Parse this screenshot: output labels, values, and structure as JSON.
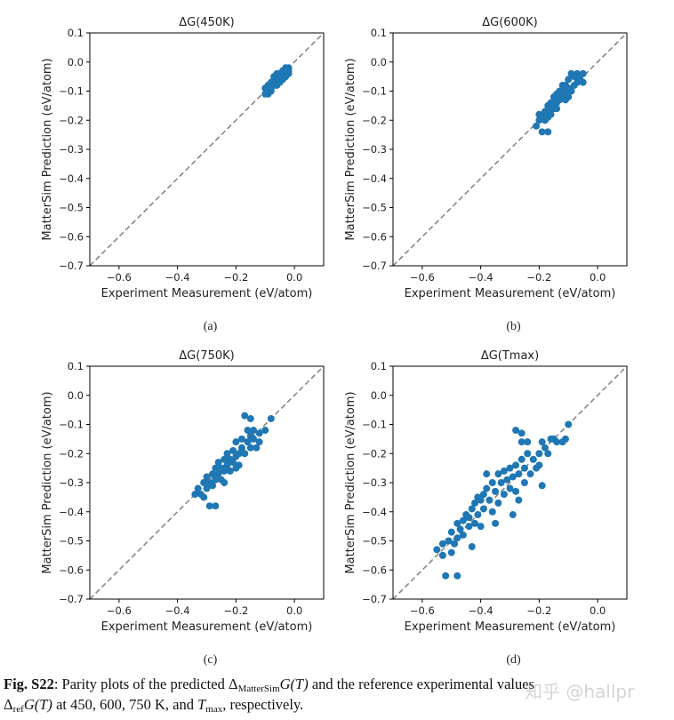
{
  "chart_data": [
    {
      "type": "scatter",
      "panel_label": "(a)",
      "title": "ΔG(450K)",
      "xlabel": "Experiment Measurement (eV/atom)",
      "ylabel": "MatterSim Prediction (eV/atom)",
      "xlim": [
        -0.7,
        0.1
      ],
      "ylim": [
        -0.7,
        0.1
      ],
      "xticks": [
        "−0.6",
        "−0.4",
        "−0.2",
        "0.0"
      ],
      "xtick_values": [
        -0.6,
        -0.4,
        -0.2,
        0.0
      ],
      "yticks": [
        "0.1",
        "0.0",
        "−0.1",
        "−0.2",
        "−0.3",
        "−0.4",
        "−0.5",
        "−0.6",
        "−0.7"
      ],
      "ytick_values": [
        0.1,
        0.0,
        -0.1,
        -0.2,
        -0.3,
        -0.4,
        -0.5,
        -0.6,
        -0.7
      ],
      "reference_line": "y = x (dashed gray)",
      "marker_color": "#1f77b4",
      "grid": false,
      "points": [
        [
          -0.1,
          -0.11
        ],
        [
          -0.09,
          -0.1
        ],
        [
          -0.09,
          -0.08
        ],
        [
          -0.08,
          -0.09
        ],
        [
          -0.08,
          -0.07
        ],
        [
          -0.07,
          -0.08
        ],
        [
          -0.07,
          -0.06
        ],
        [
          -0.06,
          -0.07
        ],
        [
          -0.06,
          -0.05
        ],
        [
          -0.05,
          -0.06
        ],
        [
          -0.05,
          -0.04
        ],
        [
          -0.04,
          -0.05
        ],
        [
          -0.04,
          -0.03
        ],
        [
          -0.03,
          -0.04
        ],
        [
          -0.03,
          -0.02
        ],
        [
          -0.02,
          -0.03
        ],
        [
          -0.02,
          -0.04
        ],
        [
          -0.06,
          -0.08
        ],
        [
          -0.08,
          -0.1
        ],
        [
          -0.1,
          -0.09
        ],
        [
          -0.07,
          -0.05
        ],
        [
          -0.05,
          -0.07
        ],
        [
          -0.04,
          -0.06
        ],
        [
          -0.03,
          -0.05
        ],
        [
          -0.09,
          -0.11
        ],
        [
          -0.06,
          -0.04
        ],
        [
          -0.03,
          -0.03
        ],
        [
          -0.02,
          -0.02
        ]
      ]
    },
    {
      "type": "scatter",
      "panel_label": "(b)",
      "title": "ΔG(600K)",
      "xlabel": "Experiment Measurement (eV/atom)",
      "ylabel": "MatterSim Prediction (eV/atom)",
      "xlim": [
        -0.7,
        0.1
      ],
      "ylim": [
        -0.7,
        0.1
      ],
      "xticks": [
        "−0.6",
        "−0.4",
        "−0.2",
        "0.0"
      ],
      "xtick_values": [
        -0.6,
        -0.4,
        -0.2,
        0.0
      ],
      "yticks": [
        "0.1",
        "0.0",
        "−0.1",
        "−0.2",
        "−0.3",
        "−0.4",
        "−0.5",
        "−0.6",
        "−0.7"
      ],
      "ytick_values": [
        0.1,
        0.0,
        -0.1,
        -0.2,
        -0.3,
        -0.4,
        -0.5,
        -0.6,
        -0.7
      ],
      "reference_line": "y = x (dashed gray)",
      "marker_color": "#1f77b4",
      "grid": false,
      "points": [
        [
          -0.21,
          -0.22
        ],
        [
          -0.2,
          -0.2
        ],
        [
          -0.19,
          -0.24
        ],
        [
          -0.17,
          -0.24
        ],
        [
          -0.19,
          -0.19
        ],
        [
          -0.18,
          -0.17
        ],
        [
          -0.18,
          -0.2
        ],
        [
          -0.17,
          -0.15
        ],
        [
          -0.16,
          -0.18
        ],
        [
          -0.16,
          -0.14
        ],
        [
          -0.15,
          -0.16
        ],
        [
          -0.15,
          -0.12
        ],
        [
          -0.14,
          -0.14
        ],
        [
          -0.14,
          -0.11
        ],
        [
          -0.13,
          -0.13
        ],
        [
          -0.13,
          -0.1
        ],
        [
          -0.12,
          -0.12
        ],
        [
          -0.12,
          -0.08
        ],
        [
          -0.11,
          -0.1
        ],
        [
          -0.11,
          -0.13
        ],
        [
          -0.1,
          -0.09
        ],
        [
          -0.1,
          -0.06
        ],
        [
          -0.09,
          -0.1
        ],
        [
          -0.09,
          -0.04
        ],
        [
          -0.08,
          -0.08
        ],
        [
          -0.08,
          -0.05
        ],
        [
          -0.07,
          -0.07
        ],
        [
          -0.07,
          -0.04
        ],
        [
          -0.06,
          -0.06
        ],
        [
          -0.05,
          -0.04
        ],
        [
          -0.05,
          -0.07
        ],
        [
          -0.2,
          -0.18
        ],
        [
          -0.17,
          -0.19
        ],
        [
          -0.14,
          -0.16
        ],
        [
          -0.12,
          -0.1
        ],
        [
          -0.1,
          -0.12
        ],
        [
          -0.15,
          -0.14
        ],
        [
          -0.16,
          -0.16
        ],
        [
          -0.13,
          -0.12
        ],
        [
          -0.11,
          -0.08
        ]
      ]
    },
    {
      "type": "scatter",
      "panel_label": "(c)",
      "title": "ΔG(750K)",
      "xlabel": "Experiment Measurement (eV/atom)",
      "ylabel": "MatterSim Prediction (eV/atom)",
      "xlim": [
        -0.7,
        0.1
      ],
      "ylim": [
        -0.7,
        0.1
      ],
      "xticks": [
        "−0.6",
        "−0.4",
        "−0.2",
        "0.0"
      ],
      "xtick_values": [
        -0.6,
        -0.4,
        -0.2,
        0.0
      ],
      "yticks": [
        "0.1",
        "0.0",
        "−0.1",
        "−0.2",
        "−0.3",
        "−0.4",
        "−0.5",
        "−0.6",
        "−0.7"
      ],
      "ytick_values": [
        0.1,
        0.0,
        -0.1,
        -0.2,
        -0.3,
        -0.4,
        -0.5,
        -0.6,
        -0.7
      ],
      "reference_line": "y = x (dashed gray)",
      "marker_color": "#1f77b4",
      "grid": false,
      "points": [
        [
          -0.34,
          -0.34
        ],
        [
          -0.33,
          -0.32
        ],
        [
          -0.32,
          -0.34
        ],
        [
          -0.31,
          -0.3
        ],
        [
          -0.3,
          -0.32
        ],
        [
          -0.29,
          -0.38
        ],
        [
          -0.27,
          -0.38
        ],
        [
          -0.3,
          -0.28
        ],
        [
          -0.29,
          -0.3
        ],
        [
          -0.28,
          -0.27
        ],
        [
          -0.28,
          -0.31
        ],
        [
          -0.27,
          -0.25
        ],
        [
          -0.27,
          -0.29
        ],
        [
          -0.26,
          -0.27
        ],
        [
          -0.26,
          -0.23
        ],
        [
          -0.25,
          -0.25
        ],
        [
          -0.25,
          -0.29
        ],
        [
          -0.24,
          -0.22
        ],
        [
          -0.24,
          -0.26
        ],
        [
          -0.23,
          -0.24
        ],
        [
          -0.23,
          -0.2
        ],
        [
          -0.22,
          -0.22
        ],
        [
          -0.22,
          -0.26
        ],
        [
          -0.21,
          -0.19
        ],
        [
          -0.21,
          -0.23
        ],
        [
          -0.2,
          -0.21
        ],
        [
          -0.2,
          -0.16
        ],
        [
          -0.19,
          -0.2
        ],
        [
          -0.19,
          -0.24
        ],
        [
          -0.18,
          -0.18
        ],
        [
          -0.18,
          -0.15
        ],
        [
          -0.17,
          -0.2
        ],
        [
          -0.17,
          -0.07
        ],
        [
          -0.16,
          -0.16
        ],
        [
          -0.16,
          -0.12
        ],
        [
          -0.15,
          -0.08
        ],
        [
          -0.15,
          -0.18
        ],
        [
          -0.14,
          -0.15
        ],
        [
          -0.14,
          -0.12
        ],
        [
          -0.13,
          -0.18
        ],
        [
          -0.12,
          -0.13
        ],
        [
          -0.12,
          -0.16
        ],
        [
          -0.1,
          -0.12
        ],
        [
          -0.08,
          -0.08
        ],
        [
          -0.24,
          -0.3
        ],
        [
          -0.31,
          -0.35
        ],
        [
          -0.2,
          -0.25
        ],
        [
          -0.15,
          -0.14
        ]
      ]
    },
    {
      "type": "scatter",
      "panel_label": "(d)",
      "title": "ΔG(Tmax)",
      "xlabel": "Experiment Measurement (eV/atom)",
      "ylabel": "MatterSim Prediction (eV/atom)",
      "xlim": [
        -0.7,
        0.1
      ],
      "ylim": [
        -0.7,
        0.1
      ],
      "xticks": [
        "−0.6",
        "−0.4",
        "−0.2",
        "0.0"
      ],
      "xtick_values": [
        -0.6,
        -0.4,
        -0.2,
        0.0
      ],
      "yticks": [
        "0.1",
        "0.0",
        "−0.1",
        "−0.2",
        "−0.3",
        "−0.4",
        "−0.5",
        "−0.6",
        "−0.7"
      ],
      "ytick_values": [
        0.1,
        0.0,
        -0.1,
        -0.2,
        -0.3,
        -0.4,
        -0.5,
        -0.6,
        -0.7
      ],
      "reference_line": "y = x (dashed gray)",
      "marker_color": "#1f77b4",
      "grid": false,
      "points": [
        [
          -0.55,
          -0.53
        ],
        [
          -0.53,
          -0.55
        ],
        [
          -0.53,
          -0.51
        ],
        [
          -0.52,
          -0.62
        ],
        [
          -0.48,
          -0.62
        ],
        [
          -0.51,
          -0.5
        ],
        [
          -0.5,
          -0.54
        ],
        [
          -0.5,
          -0.47
        ],
        [
          -0.49,
          -0.51
        ],
        [
          -0.48,
          -0.44
        ],
        [
          -0.48,
          -0.49
        ],
        [
          -0.47,
          -0.46
        ],
        [
          -0.46,
          -0.43
        ],
        [
          -0.46,
          -0.48
        ],
        [
          -0.45,
          -0.41
        ],
        [
          -0.44,
          -0.45
        ],
        [
          -0.44,
          -0.42
        ],
        [
          -0.43,
          -0.52
        ],
        [
          -0.43,
          -0.39
        ],
        [
          -0.42,
          -0.44
        ],
        [
          -0.42,
          -0.37
        ],
        [
          -0.41,
          -0.35
        ],
        [
          -0.41,
          -0.41
        ],
        [
          -0.4,
          -0.36
        ],
        [
          -0.4,
          -0.45
        ],
        [
          -0.39,
          -0.34
        ],
        [
          -0.39,
          -0.39
        ],
        [
          -0.38,
          -0.27
        ],
        [
          -0.38,
          -0.32
        ],
        [
          -0.37,
          -0.36
        ],
        [
          -0.36,
          -0.3
        ],
        [
          -0.36,
          -0.4
        ],
        [
          -0.35,
          -0.44
        ],
        [
          -0.35,
          -0.33
        ],
        [
          -0.34,
          -0.27
        ],
        [
          -0.34,
          -0.37
        ],
        [
          -0.33,
          -0.3
        ],
        [
          -0.32,
          -0.26
        ],
        [
          -0.32,
          -0.34
        ],
        [
          -0.31,
          -0.29
        ],
        [
          -0.3,
          -0.25
        ],
        [
          -0.3,
          -0.32
        ],
        [
          -0.29,
          -0.41
        ],
        [
          -0.29,
          -0.28
        ],
        [
          -0.28,
          -0.12
        ],
        [
          -0.28,
          -0.24
        ],
        [
          -0.28,
          -0.33
        ],
        [
          -0.27,
          -0.36
        ],
        [
          -0.27,
          -0.27
        ],
        [
          -0.26,
          -0.13
        ],
        [
          -0.26,
          -0.16
        ],
        [
          -0.26,
          -0.22
        ],
        [
          -0.25,
          -0.3
        ],
        [
          -0.25,
          -0.25
        ],
        [
          -0.24,
          -0.16
        ],
        [
          -0.24,
          -0.2
        ],
        [
          -0.23,
          -0.27
        ],
        [
          -0.22,
          -0.22
        ],
        [
          -0.21,
          -0.25
        ],
        [
          -0.2,
          -0.2
        ],
        [
          -0.19,
          -0.31
        ],
        [
          -0.19,
          -0.16
        ],
        [
          -0.18,
          -0.18
        ],
        [
          -0.17,
          -0.2
        ],
        [
          -0.16,
          -0.15
        ],
        [
          -0.15,
          -0.15
        ],
        [
          -0.14,
          -0.16
        ],
        [
          -0.12,
          -0.16
        ],
        [
          -0.11,
          -0.15
        ],
        [
          -0.1,
          -0.1
        ],
        [
          -0.2,
          -0.24
        ]
      ]
    }
  ],
  "caption": {
    "label": "Fig. S22",
    "line1_a": ": Parity plots of the predicted Δ",
    "line1_sub1": "MatterSim",
    "line1_b": "G(T)",
    "line1_c": " and the reference experimental values",
    "line2_a": "Δ",
    "line2_sub": "ref",
    "line2_b": "G(T)",
    "line2_c": " at 450, 600, 750 K, and ",
    "line2_d": "T",
    "line2_sub2": "max",
    "line2_e": ", respectively."
  },
  "watermark": "知乎 @hallpr"
}
